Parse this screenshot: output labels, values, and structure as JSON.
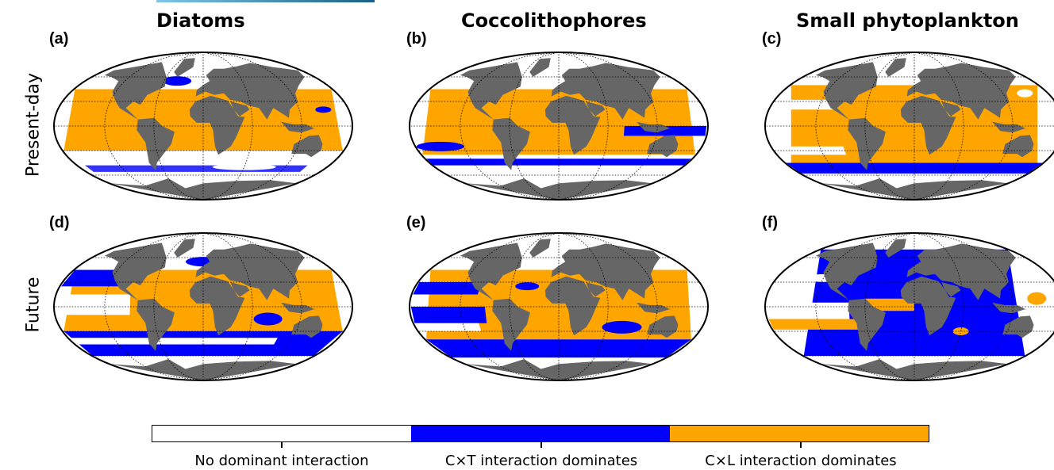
{
  "columns": [
    {
      "title": "Diatoms"
    },
    {
      "title": "Coccolithophores"
    },
    {
      "title": "Small phytoplankton"
    }
  ],
  "rows": [
    {
      "label": "Present-day"
    },
    {
      "label": "Future"
    }
  ],
  "panels": [
    {
      "label": "(a)",
      "dominant": "orange"
    },
    {
      "label": "(b)",
      "dominant": "orange"
    },
    {
      "label": "(c)",
      "dominant": "orange"
    },
    {
      "label": "(d)",
      "dominant": "mixed"
    },
    {
      "label": "(e)",
      "dominant": "mixed"
    },
    {
      "label": "(f)",
      "dominant": "blue"
    }
  ],
  "colorbar": {
    "categories": [
      {
        "label": "No dominant interaction",
        "color": "#ffffff"
      },
      {
        "label": "C×T interaction dominates",
        "color": "#0000ff"
      },
      {
        "label": "C×L interaction dominates",
        "color": "#ffa500"
      }
    ]
  },
  "colors": {
    "land": "#666666",
    "ct": "#0000ff",
    "cl": "#ffa500",
    "none": "#ffffff"
  }
}
